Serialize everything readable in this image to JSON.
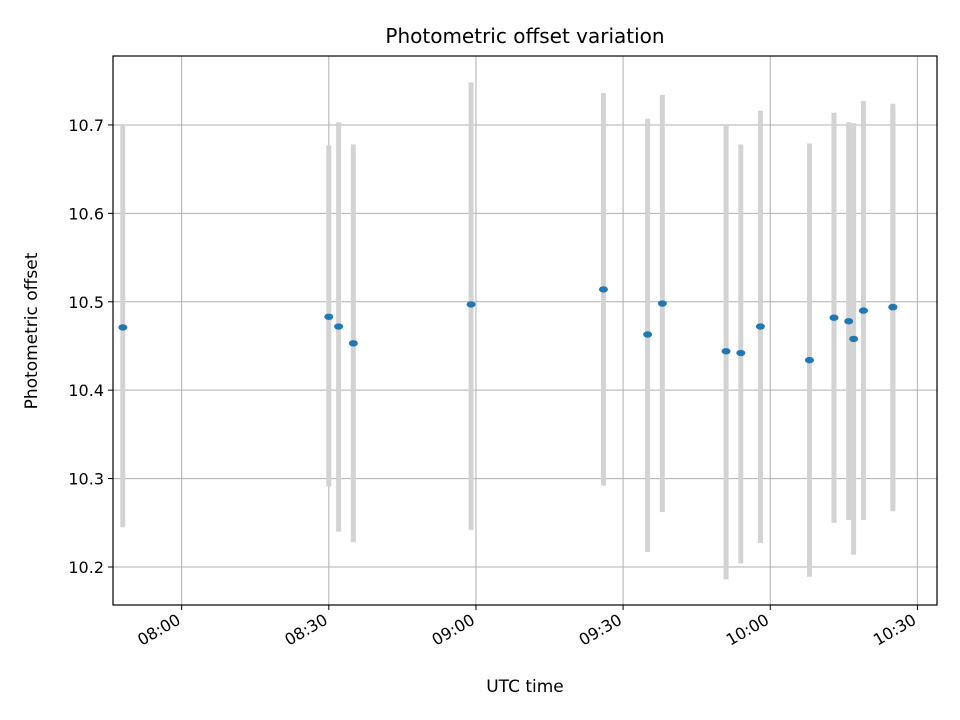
{
  "chart_data": {
    "type": "scatter",
    "title": "Photometric offset variation",
    "xlabel": "UTC time",
    "ylabel": "Photometric offset",
    "x_axis_kind": "time",
    "x_tick_labels": [
      "08:00",
      "08:30",
      "09:00",
      "09:30",
      "10:00",
      "10:30"
    ],
    "y_ticks": [
      10.2,
      10.3,
      10.4,
      10.5,
      10.6,
      10.7
    ],
    "y_tick_labels": [
      "10.2",
      "10.3",
      "10.4",
      "10.5",
      "10.6",
      "10.7"
    ],
    "xlim": [
      "07:46",
      "10:34"
    ],
    "ylim": [
      10.157,
      10.778
    ],
    "grid": true,
    "legend": "none",
    "colors": {
      "points": "#1f77b4",
      "error_bars": "#d3d3d3",
      "grid": "#b0b0b0",
      "axes": "#000000"
    },
    "points": [
      {
        "x": "07:48",
        "y": 10.471,
        "y_low": 10.245,
        "y_high": 10.699
      },
      {
        "x": "08:30",
        "y": 10.483,
        "y_low": 10.291,
        "y_high": 10.677
      },
      {
        "x": "08:32",
        "y": 10.472,
        "y_low": 10.24,
        "y_high": 10.703
      },
      {
        "x": "08:35",
        "y": 10.453,
        "y_low": 10.228,
        "y_high": 10.678
      },
      {
        "x": "08:59",
        "y": 10.497,
        "y_low": 10.242,
        "y_high": 10.748
      },
      {
        "x": "09:26",
        "y": 10.514,
        "y_low": 10.292,
        "y_high": 10.736
      },
      {
        "x": "09:35",
        "y": 10.463,
        "y_low": 10.217,
        "y_high": 10.707
      },
      {
        "x": "09:38",
        "y": 10.498,
        "y_low": 10.262,
        "y_high": 10.734
      },
      {
        "x": "09:51",
        "y": 10.444,
        "y_low": 10.186,
        "y_high": 10.7
      },
      {
        "x": "09:54",
        "y": 10.442,
        "y_low": 10.204,
        "y_high": 10.678
      },
      {
        "x": "09:58",
        "y": 10.472,
        "y_low": 10.227,
        "y_high": 10.716
      },
      {
        "x": "10:08",
        "y": 10.434,
        "y_low": 10.189,
        "y_high": 10.679
      },
      {
        "x": "10:13",
        "y": 10.482,
        "y_low": 10.25,
        "y_high": 10.714
      },
      {
        "x": "10:16",
        "y": 10.478,
        "y_low": 10.253,
        "y_high": 10.703
      },
      {
        "x": "10:17",
        "y": 10.458,
        "y_low": 10.214,
        "y_high": 10.702
      },
      {
        "x": "10:19",
        "y": 10.49,
        "y_low": 10.253,
        "y_high": 10.727
      },
      {
        "x": "10:25",
        "y": 10.494,
        "y_low": 10.263,
        "y_high": 10.724
      },
      {
        "x": "10:25",
        "y": 10.494,
        "y_low": 10.266,
        "y_high": 10.72
      }
    ]
  }
}
